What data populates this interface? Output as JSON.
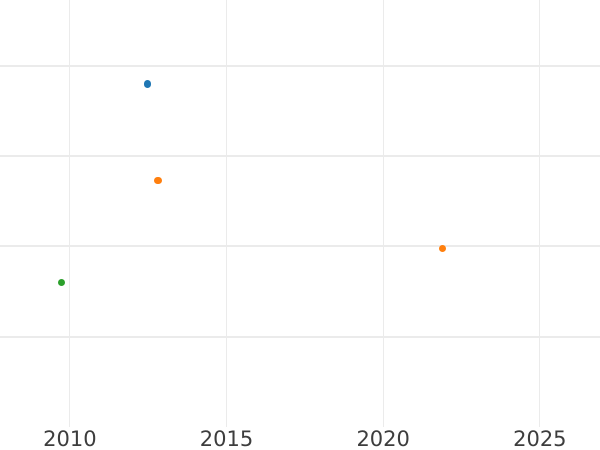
{
  "chart": {
    "colors": {
      "background": "#ffffff",
      "grid": "#ebebeb",
      "tick_label": "#3d3d3d"
    }
  },
  "chart_data": {
    "type": "scatter",
    "grid": true,
    "legend": false,
    "xlim": [
      2007.77,
      2026.92
    ],
    "ylim": [
      0,
      4.73
    ],
    "x_ticks": [
      {
        "value": 2010,
        "label": "2010"
      },
      {
        "value": 2015,
        "label": "2015"
      },
      {
        "value": 2020,
        "label": "2020"
      },
      {
        "value": 2025,
        "label": "2025"
      }
    ],
    "y_ticks": [
      1,
      2,
      3,
      4
    ],
    "y_tick_labels_visible": false,
    "points": [
      {
        "x": 2009.74,
        "y": 1.6,
        "color": "#2ca02c"
      },
      {
        "x": 2012.48,
        "y": 3.8,
        "color": "#1f77b4"
      },
      {
        "x": 2012.82,
        "y": 2.73,
        "color": "#ff7f0e"
      },
      {
        "x": 2021.9,
        "y": 1.98,
        "color": "#ff7f0e"
      }
    ]
  }
}
